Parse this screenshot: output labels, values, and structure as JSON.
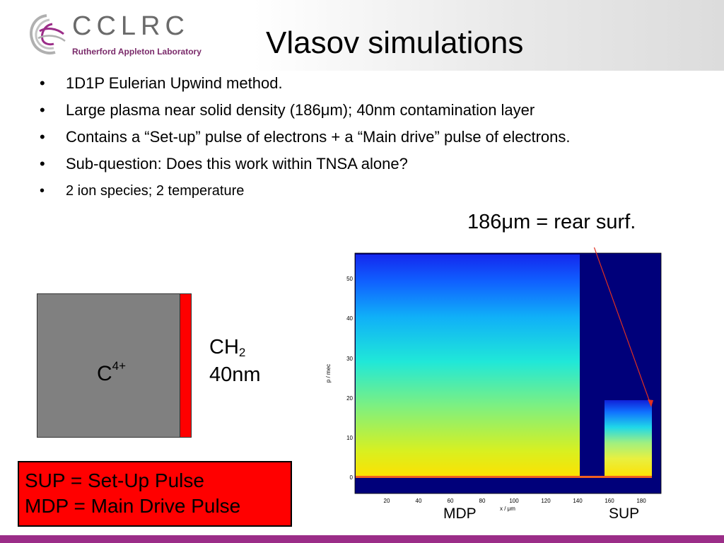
{
  "header": {
    "logo_text": "CCLRC",
    "logo_subtitle": "Rutherford Appleton Laboratory",
    "title": "Vlasov simulations"
  },
  "bullets": [
    "1D1P Eulerian Upwind method.",
    "Large plasma near solid density (186μm); 40nm contamination layer",
    "Contains a “Set-up” pulse of electrons + a “Main drive” pulse of electrons.",
    "Sub-question: Does this work within TNSA alone?",
    "2 ion species; 2 temperature"
  ],
  "bullet_symbol": "•",
  "annotation": "186μm = rear surf.",
  "target": {
    "main_species": "C",
    "main_charge": "4+",
    "layer_formula_base": "CH",
    "layer_formula_sub": "2",
    "layer_thickness": "40nm",
    "main_color": "#808080",
    "layer_color": "#ff0000"
  },
  "legend": {
    "line1": "SUP = Set-Up Pulse",
    "line2": "MDP = Main Drive Pulse",
    "background": "#ff0000"
  },
  "plot": {
    "x_ticks": [
      "20",
      "40",
      "60",
      "80",
      "100",
      "120",
      "140",
      "160",
      "180"
    ],
    "y_ticks": [
      "0",
      "10",
      "20",
      "30",
      "40",
      "50"
    ],
    "xlabel": "x / μm",
    "ylabel": "p / mec",
    "mdp_label": "MDP",
    "sup_label": "SUP"
  },
  "colors": {
    "footer": "#9b2d88",
    "logo_accent": "#7a2a6a",
    "arrow": "#e03020"
  }
}
